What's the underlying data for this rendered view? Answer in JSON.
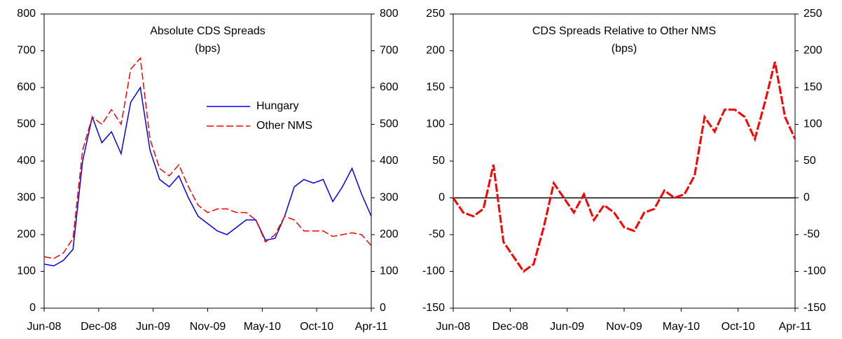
{
  "chart_data": [
    {
      "type": "line",
      "title": "Absolute CDS Spreads",
      "subtitle": "(bps)",
      "x": [
        0,
        1,
        2,
        3,
        4,
        5,
        6,
        7,
        8,
        9,
        10,
        11,
        12,
        13,
        14,
        15,
        16,
        17,
        18,
        19,
        20,
        21,
        22,
        23,
        24,
        25,
        26,
        27,
        28,
        29,
        30,
        31,
        32,
        33,
        34
      ],
      "series": [
        {
          "name": "Hungary",
          "color": "#0000ff",
          "style": "solid",
          "values": [
            120,
            115,
            130,
            160,
            400,
            520,
            450,
            480,
            420,
            560,
            600,
            430,
            350,
            330,
            360,
            300,
            250,
            230,
            210,
            200,
            220,
            240,
            240,
            185,
            190,
            250,
            330,
            350,
            340,
            350,
            290,
            330,
            380,
            310,
            250
          ]
        },
        {
          "name": "Other NMS",
          "color": "#ff0000",
          "style": "dashed",
          "values": [
            140,
            135,
            150,
            190,
            430,
            520,
            500,
            540,
            500,
            650,
            680,
            460,
            380,
            360,
            390,
            330,
            280,
            260,
            270,
            270,
            260,
            260,
            240,
            180,
            200,
            250,
            240,
            210,
            210,
            210,
            195,
            200,
            205,
            200,
            170
          ]
        }
      ],
      "xlim": [
        0,
        34
      ],
      "xticks": [
        {
          "value": 0,
          "label": "Jun-08"
        },
        {
          "value": 5.67,
          "label": "Dec-08"
        },
        {
          "value": 11.33,
          "label": "Jun-09"
        },
        {
          "value": 17,
          "label": "Nov-09"
        },
        {
          "value": 22.67,
          "label": "May-10"
        },
        {
          "value": 28.33,
          "label": "Oct-10"
        },
        {
          "value": 34,
          "label": "Apr-11"
        }
      ],
      "ylim": [
        0,
        800
      ],
      "yticks": [
        0,
        100,
        200,
        300,
        400,
        500,
        600,
        700,
        800
      ],
      "legend": "upper-center"
    },
    {
      "type": "line",
      "title": "CDS Spreads Relative to Other NMS",
      "subtitle": "(bps)",
      "x": [
        0,
        1,
        2,
        3,
        4,
        5,
        6,
        7,
        8,
        9,
        10,
        11,
        12,
        13,
        14,
        15,
        16,
        17,
        18,
        19,
        20,
        21,
        22,
        23,
        24,
        25,
        26,
        27,
        28,
        29,
        30,
        31,
        32,
        33,
        34
      ],
      "series": [
        {
          "color": "#ff0000",
          "style": "dashed",
          "values": [
            0,
            -20,
            -25,
            -15,
            45,
            -60,
            -80,
            -100,
            -90,
            -40,
            20,
            0,
            -20,
            5,
            -30,
            -10,
            -20,
            -40,
            -45,
            -20,
            -15,
            10,
            0,
            5,
            30,
            110,
            90,
            120,
            120,
            110,
            80,
            130,
            185,
            110,
            80
          ]
        }
      ],
      "xlim": [
        0,
        34
      ],
      "xticks": [
        {
          "value": 0,
          "label": "Jun-08"
        },
        {
          "value": 5.67,
          "label": "Dec-08"
        },
        {
          "value": 11.33,
          "label": "Jun-09"
        },
        {
          "value": 17,
          "label": "Nov-09"
        },
        {
          "value": 22.67,
          "label": "May-10"
        },
        {
          "value": 28.33,
          "label": "Oct-10"
        },
        {
          "value": 34,
          "label": "Apr-11"
        }
      ],
      "ylim": [
        -150,
        250
      ],
      "yticks": [
        -150,
        -100,
        -50,
        0,
        50,
        100,
        150,
        200,
        250
      ],
      "zero_line": true
    }
  ]
}
